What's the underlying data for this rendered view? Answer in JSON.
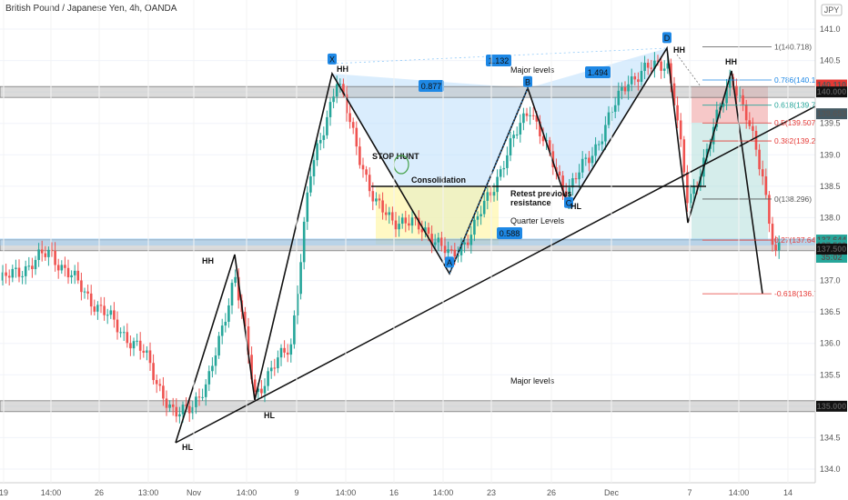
{
  "chart_title": "British Pound / Japanese Yen, 4h, OANDA",
  "currency_badge": "JPY",
  "chart_data": {
    "type": "candlestick",
    "symbol": "GBPJPY",
    "timeframe": "4h",
    "ylim": [
      133.8,
      141.45
    ],
    "y_ticks": [
      134.0,
      134.5,
      135.0,
      135.5,
      136.0,
      136.5,
      137.0,
      137.5,
      138.0,
      138.5,
      139.0,
      139.5,
      140.0,
      140.5,
      141.0
    ],
    "x_ticks": [
      "19",
      "14:00",
      "26",
      "13:00",
      "Nov",
      "14:00",
      "9",
      "14:00",
      "16",
      "14:00",
      "23",
      "26",
      "Dec",
      "7",
      "14:00",
      "14"
    ],
    "price_labels": [
      {
        "text": "140.110",
        "value": 140.11,
        "color": "#e53935"
      },
      {
        "text": "140.000",
        "value": 140.0,
        "color": "#111111"
      },
      {
        "text": "139.653",
        "value": 139.653,
        "color": "#455a64"
      },
      {
        "text": "137.644",
        "value": 137.644,
        "color": "#26a69a"
      },
      {
        "text": "137.560",
        "value": 137.56,
        "color": "#26a69a"
      },
      {
        "text": "35:02",
        "value": 137.37,
        "color": "#26a69a"
      },
      {
        "text": "137.500",
        "value": 137.5,
        "color": "#111111"
      },
      {
        "text": "135.000",
        "value": 135.0,
        "color": "#111111"
      }
    ],
    "fib_levels": [
      {
        "text": "1(140.718)",
        "value": 140.718
      },
      {
        "text": "0.786(140.19",
        "value": 140.19
      },
      {
        "text": "0.618(139.7",
        "value": 139.79
      },
      {
        "text": "0.5(139.507)",
        "value": 139.507
      },
      {
        "text": "0.382(139.22",
        "value": 139.22
      },
      {
        "text": "0(138.296)",
        "value": 138.296
      },
      {
        "text": "0.27(137.64",
        "value": 137.644
      },
      {
        "text": "-0.618(136.7",
        "value": 136.79
      }
    ],
    "harmonic_points": [
      {
        "label": "X",
        "value": 140.38
      },
      {
        "label": "A",
        "value": 137.35
      },
      {
        "label": "B",
        "value": 140.02
      },
      {
        "label": "C",
        "value": 138.27
      },
      {
        "label": "D",
        "value": 140.72
      }
    ],
    "ratios": [
      "0.877",
      "1.132",
      "1.494",
      "0.588"
    ],
    "zones": [
      {
        "label": "Major levels",
        "value": 140.0
      },
      {
        "label": "Major levels",
        "value": 137.5
      },
      {
        "label": "Major levels",
        "value": 135.0
      }
    ],
    "annotations": [
      "HH",
      "HL",
      "HH",
      "HL",
      "HH",
      "HH",
      "HL",
      "STOP HUNT",
      "Consolidation",
      "Retest previous resistance",
      "Quarter Levels",
      "Major levels",
      "Major levels",
      "HL"
    ]
  }
}
